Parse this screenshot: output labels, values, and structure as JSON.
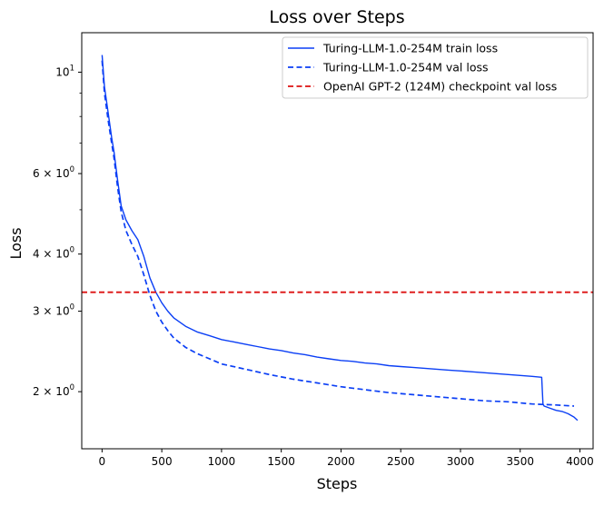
{
  "chart_data": {
    "type": "line",
    "title": "Loss over Steps",
    "xlabel": "Steps",
    "ylabel": "Loss",
    "yscale": "log",
    "xlim": [
      -170,
      4110
    ],
    "ylim": [
      1.5,
      12.2
    ],
    "grid": false,
    "legend_position": "top-right",
    "x_ticks": [
      {
        "value": 0,
        "label": "0"
      },
      {
        "value": 500,
        "label": "500"
      },
      {
        "value": 1000,
        "label": "1000"
      },
      {
        "value": 1500,
        "label": "1500"
      },
      {
        "value": 2000,
        "label": "2000"
      },
      {
        "value": 2500,
        "label": "2500"
      },
      {
        "value": 3000,
        "label": "3000"
      },
      {
        "value": 3500,
        "label": "3500"
      },
      {
        "value": 4000,
        "label": "4000"
      }
    ],
    "y_ticks": [
      {
        "value": 10,
        "base": "10",
        "exp": "1",
        "label": "10^1"
      },
      {
        "value": 6,
        "base": "6 × 10",
        "exp": "0",
        "label": "6 × 10^0"
      },
      {
        "value": 4,
        "base": "4 × 10",
        "exp": "0",
        "label": "4 × 10^0"
      },
      {
        "value": 3,
        "base": "3 × 10",
        "exp": "0",
        "label": "3 × 10^0"
      },
      {
        "value": 2,
        "base": "2 × 10",
        "exp": "0",
        "label": "2 × 10^0"
      }
    ],
    "y_minor_ticks": [
      5,
      7,
      8,
      9
    ],
    "series": [
      {
        "name": "Turing-LLM-1.0-254M train loss",
        "color": "#0b3ff5",
        "style": "solid",
        "x": [
          0,
          20,
          50,
          80,
          100,
          130,
          160,
          200,
          250,
          300,
          350,
          400,
          450,
          500,
          550,
          600,
          700,
          800,
          900,
          1000,
          1100,
          1200,
          1300,
          1400,
          1500,
          1600,
          1700,
          1800,
          1900,
          2000,
          2100,
          2200,
          2300,
          2400,
          2500,
          2600,
          2700,
          2800,
          2900,
          3000,
          3100,
          3200,
          3300,
          3400,
          3500,
          3600,
          3680,
          3690,
          3700,
          3750,
          3800,
          3850,
          3900,
          3950,
          3980
        ],
        "y": [
          10.9,
          9.3,
          8.2,
          7.2,
          6.7,
          5.8,
          5.1,
          4.75,
          4.5,
          4.3,
          3.95,
          3.55,
          3.3,
          3.13,
          3.0,
          2.9,
          2.78,
          2.7,
          2.65,
          2.6,
          2.57,
          2.54,
          2.51,
          2.48,
          2.46,
          2.43,
          2.41,
          2.38,
          2.36,
          2.34,
          2.33,
          2.31,
          2.3,
          2.28,
          2.27,
          2.26,
          2.25,
          2.24,
          2.23,
          2.22,
          2.21,
          2.2,
          2.19,
          2.18,
          2.17,
          2.16,
          2.15,
          1.88,
          1.86,
          1.84,
          1.82,
          1.81,
          1.79,
          1.76,
          1.73
        ]
      },
      {
        "name": "Turing-LLM-1.0-254M val loss",
        "color": "#0b3ff5",
        "style": "dashed",
        "x": [
          0,
          20,
          50,
          80,
          100,
          130,
          160,
          200,
          250,
          300,
          350,
          400,
          450,
          500,
          550,
          600,
          700,
          800,
          900,
          1000,
          1200,
          1400,
          1600,
          1800,
          2000,
          2200,
          2400,
          2600,
          2800,
          3000,
          3200,
          3400,
          3600,
          3800,
          3950
        ],
        "y": [
          10.6,
          9.0,
          7.9,
          7.0,
          6.5,
          5.6,
          4.95,
          4.5,
          4.2,
          3.95,
          3.6,
          3.25,
          3.0,
          2.84,
          2.72,
          2.62,
          2.5,
          2.42,
          2.36,
          2.3,
          2.24,
          2.18,
          2.13,
          2.09,
          2.05,
          2.02,
          1.99,
          1.97,
          1.95,
          1.93,
          1.91,
          1.9,
          1.88,
          1.87,
          1.86
        ]
      },
      {
        "name": "OpenAI GPT-2 (124M) checkpoint val loss",
        "color": "#dd1111",
        "style": "dashed",
        "type": "hline",
        "y": 3.3
      }
    ]
  }
}
